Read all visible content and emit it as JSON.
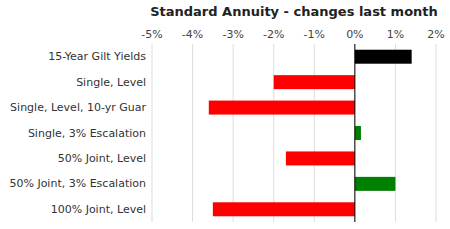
{
  "chart_data": {
    "type": "bar",
    "orientation": "horizontal",
    "title": "Standard Annuity - changes last month",
    "categories": [
      "100% Joint, Level",
      "50% Joint, 3% Escalation",
      "50% Joint, Level",
      "Single, 3% Escalation",
      "Single, Level, 10-yr Guar",
      "Single, Level",
      "15-Year Gilt Yields"
    ],
    "values": [
      -3.5,
      1.0,
      -1.7,
      0.15,
      -3.6,
      -2.0,
      1.4
    ],
    "colors": [
      "#ff0000",
      "#008000",
      "#ff0000",
      "#008000",
      "#ff0000",
      "#ff0000",
      "#000000"
    ],
    "xlim": [
      -5,
      2
    ],
    "xticks": [
      {
        "value": -5,
        "label": "-5%"
      },
      {
        "value": -4,
        "label": "-4%"
      },
      {
        "value": -3,
        "label": "-3%"
      },
      {
        "value": -2,
        "label": "-2%"
      },
      {
        "value": -1,
        "label": "-1%"
      },
      {
        "value": 0,
        "label": "0%"
      },
      {
        "value": 1,
        "label": "1%"
      },
      {
        "value": 2,
        "label": "2%"
      }
    ],
    "grid": true
  }
}
